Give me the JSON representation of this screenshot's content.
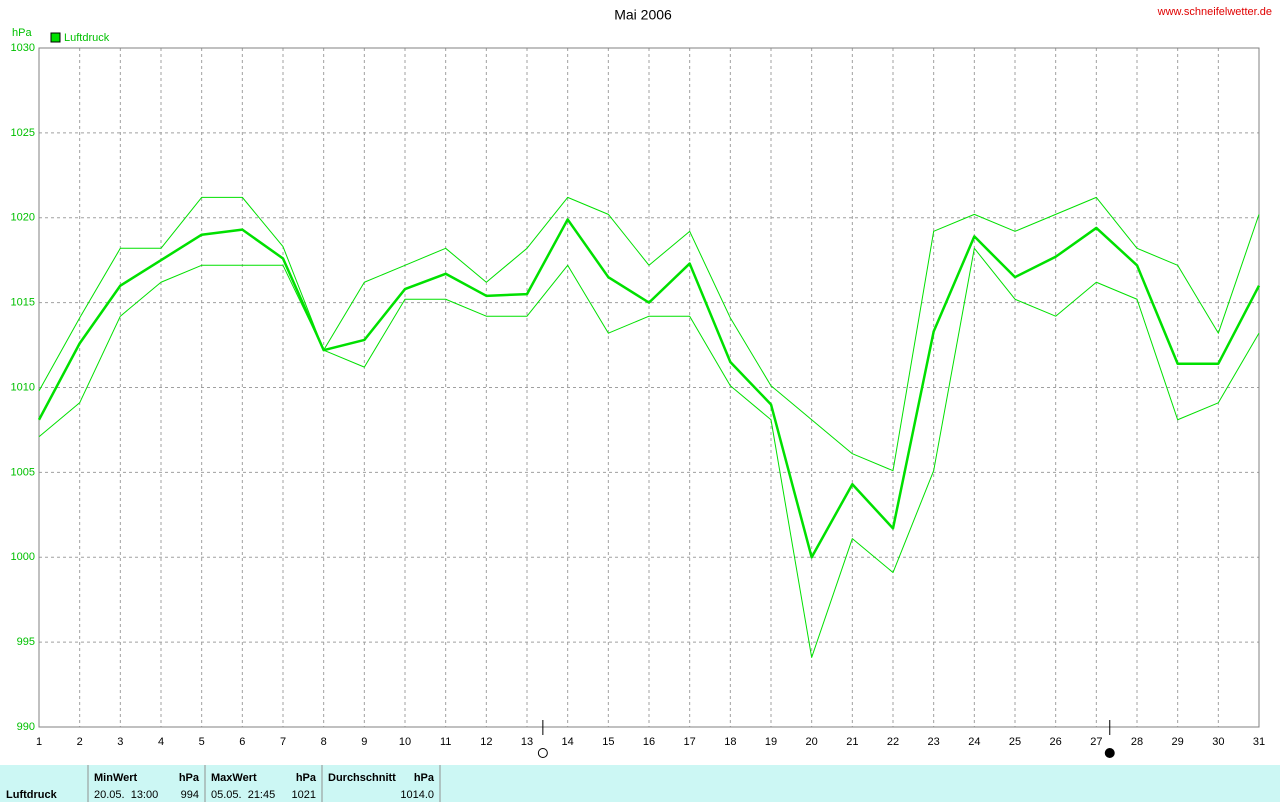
{
  "chart_data": {
    "type": "line",
    "title": "Mai 2006",
    "source": "www.schneifelwetter.de",
    "y_label": "hPa",
    "x": [
      1,
      2,
      3,
      4,
      5,
      6,
      7,
      8,
      9,
      10,
      11,
      12,
      13,
      14,
      15,
      16,
      17,
      18,
      19,
      20,
      21,
      22,
      23,
      24,
      25,
      26,
      27,
      28,
      29,
      30,
      31
    ],
    "series": [
      {
        "name": "Luftdruck",
        "color": "#00e000",
        "width": 2.5,
        "values": [
          1008.1,
          1012.6,
          1016.0,
          1017.5,
          1019.0,
          1019.3,
          1017.6,
          1012.2,
          1012.8,
          1015.8,
          1016.7,
          1015.4,
          1015.5,
          1019.9,
          1016.5,
          1015.0,
          1017.3,
          1011.5,
          1009.0,
          1000.0,
          1004.3,
          1001.7,
          1013.3,
          1018.9,
          1016.5,
          1017.7,
          1019.4,
          1017.2,
          1011.4,
          1011.4,
          1016.0
        ]
      },
      {
        "color": "#00e000",
        "width": 1,
        "values": [
          1009.8,
          1014.1,
          1018.2,
          1018.2,
          1021.2,
          1021.2,
          1018.3,
          1012.2,
          1016.2,
          1017.2,
          1018.2,
          1016.2,
          1018.2,
          1021.2,
          1020.2,
          1017.2,
          1019.2,
          1014.1,
          1010.1,
          1008.1,
          1006.1,
          1005.1,
          1019.2,
          1020.2,
          1019.2,
          1020.2,
          1021.2,
          1018.2,
          1017.2,
          1013.2,
          1020.2
        ]
      },
      {
        "color": "#00e000",
        "width": 1,
        "values": [
          1007.1,
          1009.1,
          1014.2,
          1016.2,
          1017.2,
          1017.2,
          1017.2,
          1012.2,
          1011.2,
          1015.2,
          1015.2,
          1014.2,
          1014.2,
          1017.2,
          1013.2,
          1014.2,
          1014.2,
          1010.1,
          1008.1,
          994.1,
          1001.1,
          999.1,
          1005.1,
          1018.2,
          1015.2,
          1014.2,
          1016.2,
          1015.2,
          1008.1,
          1009.1,
          1013.2
        ]
      }
    ],
    "xlim": [
      1,
      31
    ],
    "xticks": [
      1,
      2,
      3,
      4,
      5,
      6,
      7,
      8,
      9,
      10,
      11,
      12,
      13,
      14,
      15,
      16,
      17,
      18,
      19,
      20,
      21,
      22,
      23,
      24,
      25,
      26,
      27,
      28,
      29,
      30,
      31
    ],
    "ylim": [
      990,
      1030
    ],
    "yticks": [
      990,
      995,
      1000,
      1005,
      1010,
      1015,
      1020,
      1025,
      1030
    ],
    "grid": true,
    "moon_phases": [
      {
        "x": 13.39,
        "phase": "full"
      },
      {
        "x": 27.33,
        "phase": "new"
      }
    ]
  },
  "stats": {
    "row_label": "Luftdruck",
    "columns": [
      {
        "header": "MinWert",
        "unit": "hPa",
        "date": "20.05.  13:00",
        "value": "994"
      },
      {
        "header": "MaxWert",
        "unit": "hPa",
        "date": "05.05.  21:45",
        "value": "1021"
      },
      {
        "header": "Durchschnitt",
        "unit": "hPa",
        "value": "1014.0"
      }
    ]
  }
}
